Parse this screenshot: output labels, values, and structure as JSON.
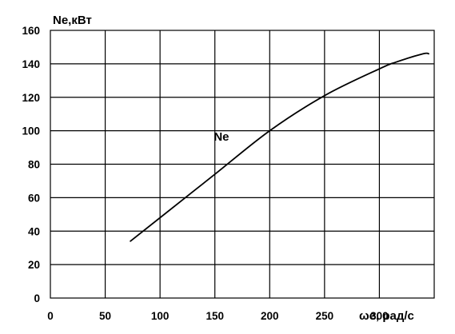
{
  "chart_data": {
    "type": "line",
    "title": "",
    "ylabel": "Ne,кВт",
    "xlabel": "ωe, рад/с",
    "xlim": [
      0,
      350
    ],
    "ylim": [
      0,
      160
    ],
    "xticks": [
      0,
      50,
      100,
      150,
      200,
      250,
      300
    ],
    "yticks": [
      0,
      20,
      40,
      60,
      80,
      100,
      120,
      140,
      160
    ],
    "grid": true,
    "series": [
      {
        "name": "Ne",
        "x": [
          73,
          100,
          150,
          200,
          250,
          300,
          315,
          340,
          345
        ],
        "y": [
          34,
          48,
          74,
          100,
          121,
          137,
          141,
          146,
          146
        ]
      }
    ]
  }
}
